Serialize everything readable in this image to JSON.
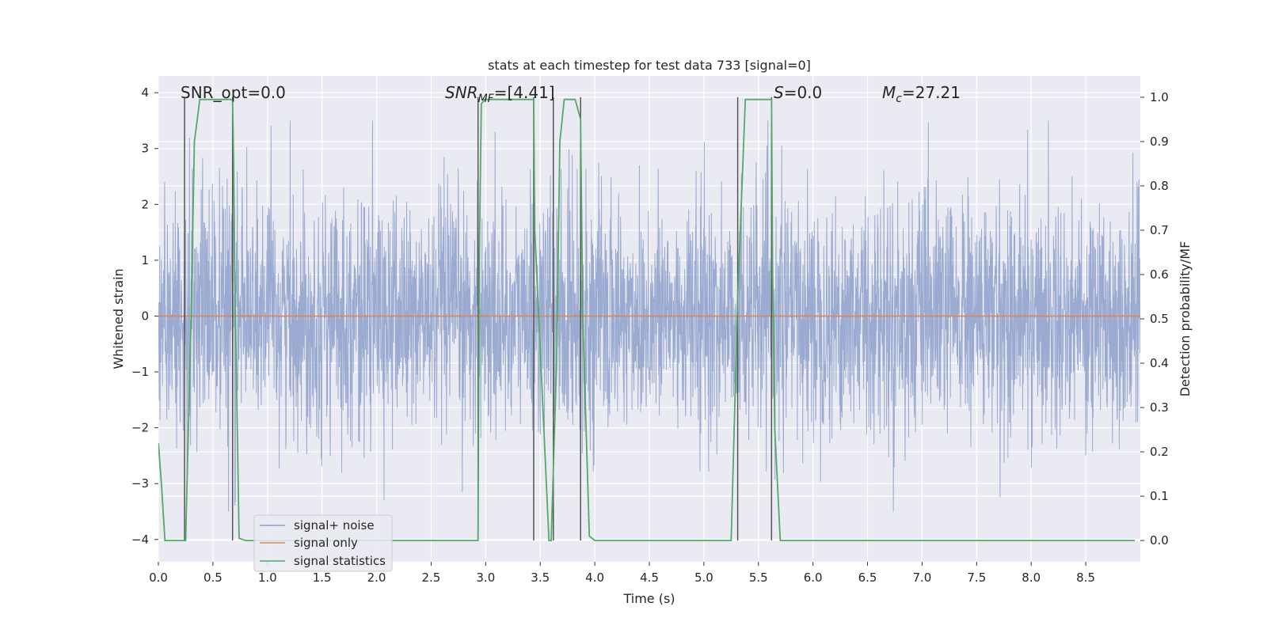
{
  "chart_data": {
    "type": "line",
    "title": "stats at each timestep for test data 733 [signal=0]",
    "xlabel": "Time (s)",
    "ylabel_left": "Whitened strain",
    "ylabel_right": "Detection probability/MF",
    "xlim": [
      0.0,
      9.0
    ],
    "ylim_left": [
      -4.4,
      4.3
    ],
    "ylim_right": [
      -0.048,
      1.048
    ],
    "x_ticks": [
      "0.0",
      "0.5",
      "1.0",
      "1.5",
      "2.0",
      "2.5",
      "3.0",
      "3.5",
      "4.0",
      "4.5",
      "5.0",
      "5.5",
      "6.0",
      "6.5",
      "7.0",
      "7.5",
      "8.0",
      "8.5"
    ],
    "y_ticks_left": [
      "4",
      "3",
      "2",
      "1",
      "0",
      "−1",
      "−2",
      "−3",
      "−4"
    ],
    "y_ticks_right": [
      "1.0",
      "0.9",
      "0.8",
      "0.7",
      "0.6",
      "0.5",
      "0.4",
      "0.3",
      "0.2",
      "0.1",
      "0.0"
    ],
    "grid": true,
    "annotations": {
      "snr_opt": "SNR_opt=0.0",
      "snr_mf_base": "SNR",
      "snr_mf_sub": "MF",
      "snr_mf_value": "=[4.41]",
      "s_base": "S",
      "s_value": "=0.0",
      "mc_base": "M",
      "mc_sub": "c",
      "mc_value": "=27.21"
    },
    "legend": {
      "placement": "lower-left",
      "entries": [
        "signal+ noise",
        "signal only",
        "signal statistics"
      ]
    },
    "series": [
      {
        "name": "signal+ noise",
        "axis": "left",
        "color": "#8c9fcb",
        "description_stats": {
          "approx_range": [
            -3.5,
            3.5
          ],
          "x_range": [
            0.0,
            9.0
          ]
        }
      },
      {
        "name": "signal only",
        "axis": "left",
        "color": "#dd8452",
        "x": [
          0.0,
          9.0
        ],
        "values": [
          0.0,
          0.0
        ]
      },
      {
        "name": "signal statistics",
        "axis": "right",
        "color": "#55a868",
        "x": [
          0.0,
          0.03,
          0.06,
          0.25,
          0.3,
          0.33,
          0.38,
          0.55,
          0.68,
          0.69,
          0.7,
          0.74,
          0.8,
          2.93,
          2.94,
          2.96,
          2.99,
          3.05,
          3.44,
          3.45,
          3.58,
          3.6,
          3.65,
          3.68,
          3.72,
          3.82,
          3.87,
          3.89,
          3.95,
          4.0,
          5.25,
          5.31,
          5.38,
          5.62,
          5.63,
          5.65,
          5.7,
          8.95
        ],
        "values": [
          0.22,
          0.12,
          0.0,
          0.0,
          0.5,
          0.9,
          0.995,
          0.995,
          0.995,
          0.85,
          0.6,
          0.005,
          0.0,
          0.0,
          0.6,
          0.985,
          0.995,
          0.995,
          0.995,
          0.7,
          0.0,
          0.0,
          0.4,
          0.9,
          0.995,
          0.995,
          0.95,
          0.5,
          0.01,
          0.0,
          0.0,
          0.55,
          0.995,
          0.995,
          0.6,
          0.25,
          0.0,
          0.0
        ]
      },
      {
        "name": "segment markers",
        "axis": "right",
        "color": "#555555",
        "x": [
          0.24,
          0.68,
          2.93,
          3.44,
          3.62,
          3.87,
          5.31,
          5.62
        ],
        "values": [
          1.0,
          1.0,
          1.0,
          1.0,
          1.0,
          1.0,
          1.0,
          1.0
        ]
      }
    ]
  }
}
